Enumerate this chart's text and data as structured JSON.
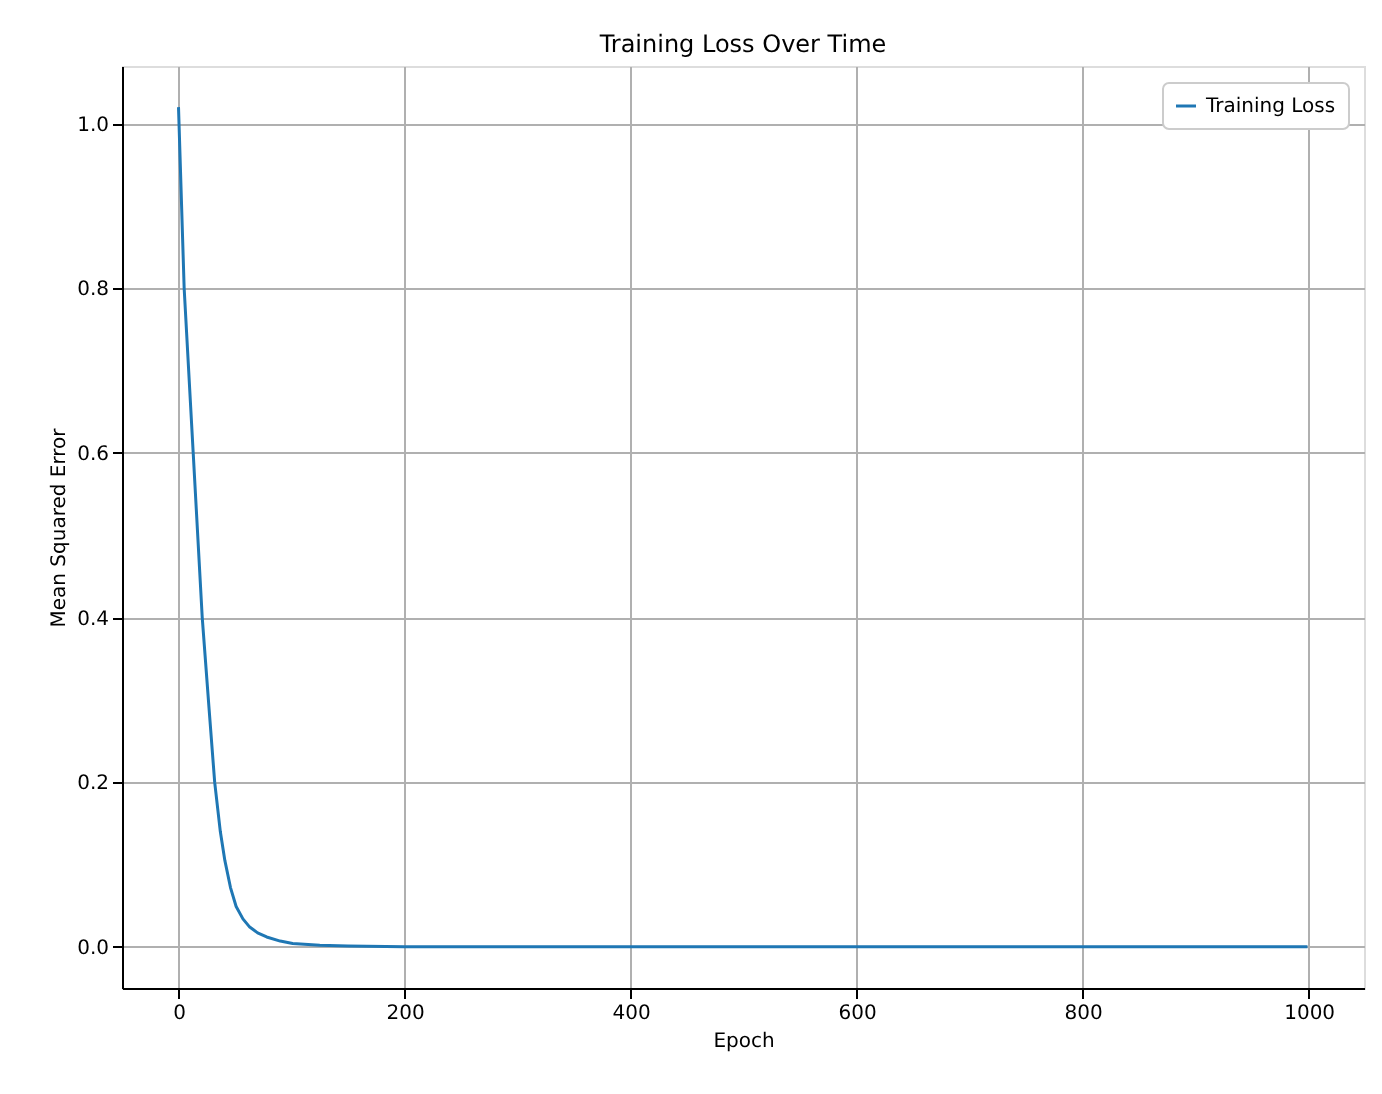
{
  "chart_data": {
    "type": "line",
    "title": "Training Loss Over Time",
    "xlabel": "Epoch",
    "ylabel": "Mean Squared Error",
    "x": [
      0,
      5,
      13,
      21,
      27,
      32,
      37,
      41,
      46,
      51,
      57,
      63,
      70,
      78,
      90,
      101,
      125,
      150,
      200,
      300,
      400,
      600,
      800,
      999
    ],
    "series": [
      {
        "name": "Training Loss",
        "color": "#1f77b4",
        "values": [
          1.02,
          0.8,
          0.6,
          0.4,
          0.29,
          0.2,
          0.14,
          0.105,
          0.072,
          0.049,
          0.034,
          0.024,
          0.017,
          0.012,
          0.007,
          0.004,
          0.002,
          0.001,
          0,
          0,
          0,
          0,
          0,
          0
        ]
      }
    ],
    "xlim": [
      -50,
      1049
    ],
    "ylim": [
      -0.05,
      1.07
    ],
    "xticks": [
      0,
      200,
      400,
      600,
      800,
      1000
    ],
    "yticks": [
      {
        "value": 0,
        "label": "0.0"
      },
      {
        "value": 0.2,
        "label": "0.2"
      },
      {
        "value": 0.4,
        "label": "0.4"
      },
      {
        "value": 0.6,
        "label": "0.6"
      },
      {
        "value": 0.8,
        "label": "0.8"
      },
      {
        "value": 1,
        "label": "1.0"
      }
    ],
    "grid": true,
    "legend": "top right",
    "line_style": "solid"
  }
}
